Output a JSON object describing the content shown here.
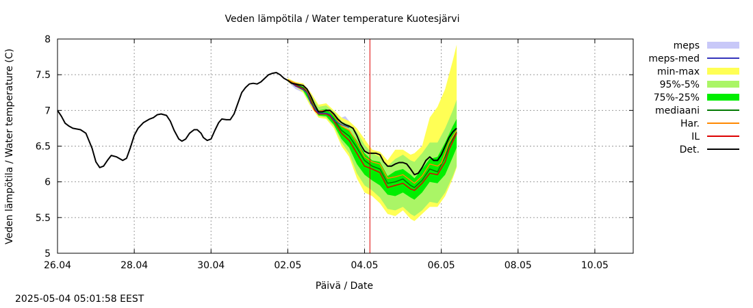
{
  "timestamp": "2025-05-04 05:01:58 EEST",
  "chart_data": {
    "type": "line",
    "title": "Veden lämpötila / Water temperature Kuotesjärvi",
    "xlabel": "Päivä / Date",
    "ylabel": "Veden lämpötila / Water temperature (C)",
    "x_range_days": [
      0,
      7.5
    ],
    "x_ticks": [
      {
        "d": 0,
        "label": "26.04"
      },
      {
        "d": 1,
        "label": "28.04"
      },
      {
        "d": 2,
        "label": "30.04"
      },
      {
        "d": 3,
        "label": "02.05"
      },
      {
        "d": 4,
        "label": "04.05"
      },
      {
        "d": 5,
        "label": "06.05"
      },
      {
        "d": 6,
        "label": "08.05"
      },
      {
        "d": 7,
        "label": "10.05"
      }
    ],
    "ylim": [
      5,
      8
    ],
    "y_ticks": [
      {
        "v": 5,
        "label": "5"
      },
      {
        "v": 5.5,
        "label": "5.5"
      },
      {
        "v": 6,
        "label": "6"
      },
      {
        "v": 6.5,
        "label": "6.5"
      },
      {
        "v": 7,
        "label": "7"
      },
      {
        "v": 7.5,
        "label": "7.5"
      },
      {
        "v": 8,
        "label": "8"
      }
    ],
    "grid": true,
    "legend_position": "right",
    "now_line_day": 4.07,
    "colors": {
      "meps": "#c8c8f8",
      "meps_med": "#3333bb",
      "minmax": "#ffff55",
      "p95_5": "#aaf566",
      "p75_25": "#00ee00",
      "mediaani": "#007700",
      "har": "#ff8800",
      "il": "#dd0000",
      "det": "#000000",
      "now_line": "#dd0000"
    },
    "legend": [
      {
        "key": "meps",
        "label": "meps",
        "style": "box"
      },
      {
        "key": "meps_med",
        "label": "meps-med",
        "style": "line"
      },
      {
        "key": "minmax",
        "label": "min-max",
        "style": "box"
      },
      {
        "key": "p95_5",
        "label": "95%-5%",
        "style": "box"
      },
      {
        "key": "p75_25",
        "label": "75%-25%",
        "style": "box"
      },
      {
        "key": "mediaani",
        "label": "mediaani",
        "style": "line"
      },
      {
        "key": "har",
        "label": "Har.",
        "style": "line"
      },
      {
        "key": "il",
        "label": "IL",
        "style": "line"
      },
      {
        "key": "det",
        "label": "Det.",
        "style": "line"
      }
    ],
    "det_history": [
      [
        0.0,
        7.0
      ],
      [
        0.05,
        6.92
      ],
      [
        0.1,
        6.82
      ],
      [
        0.15,
        6.78
      ],
      [
        0.2,
        6.75
      ],
      [
        0.3,
        6.73
      ],
      [
        0.37,
        6.68
      ],
      [
        0.45,
        6.47
      ],
      [
        0.5,
        6.28
      ],
      [
        0.55,
        6.2
      ],
      [
        0.6,
        6.22
      ],
      [
        0.65,
        6.3
      ],
      [
        0.7,
        6.37
      ],
      [
        0.77,
        6.35
      ],
      [
        0.85,
        6.3
      ],
      [
        0.9,
        6.33
      ],
      [
        0.95,
        6.48
      ],
      [
        1.0,
        6.65
      ],
      [
        1.05,
        6.75
      ],
      [
        1.12,
        6.83
      ],
      [
        1.2,
        6.88
      ],
      [
        1.25,
        6.9
      ],
      [
        1.3,
        6.94
      ],
      [
        1.35,
        6.95
      ],
      [
        1.42,
        6.93
      ],
      [
        1.47,
        6.85
      ],
      [
        1.52,
        6.72
      ],
      [
        1.58,
        6.6
      ],
      [
        1.62,
        6.57
      ],
      [
        1.67,
        6.6
      ],
      [
        1.72,
        6.68
      ],
      [
        1.78,
        6.73
      ],
      [
        1.82,
        6.73
      ],
      [
        1.87,
        6.68
      ],
      [
        1.9,
        6.62
      ],
      [
        1.95,
        6.58
      ],
      [
        2.0,
        6.6
      ],
      [
        2.05,
        6.72
      ],
      [
        2.1,
        6.83
      ],
      [
        2.14,
        6.88
      ],
      [
        2.2,
        6.87
      ],
      [
        2.25,
        6.87
      ],
      [
        2.3,
        6.95
      ],
      [
        2.35,
        7.1
      ],
      [
        2.4,
        7.25
      ],
      [
        2.45,
        7.32
      ],
      [
        2.5,
        7.37
      ],
      [
        2.55,
        7.38
      ],
      [
        2.6,
        7.37
      ],
      [
        2.65,
        7.4
      ],
      [
        2.7,
        7.45
      ],
      [
        2.75,
        7.5
      ],
      [
        2.8,
        7.52
      ],
      [
        2.85,
        7.53
      ],
      [
        2.9,
        7.5
      ],
      [
        2.95,
        7.45
      ],
      [
        3.0,
        7.42
      ]
    ],
    "det_forecast": [
      [
        3.0,
        7.42
      ],
      [
        3.05,
        7.38
      ],
      [
        3.1,
        7.37
      ],
      [
        3.15,
        7.36
      ],
      [
        3.2,
        7.35
      ],
      [
        3.25,
        7.3
      ],
      [
        3.3,
        7.2
      ],
      [
        3.35,
        7.08
      ],
      [
        3.4,
        6.98
      ],
      [
        3.45,
        6.98
      ],
      [
        3.5,
        7.0
      ],
      [
        3.55,
        7.0
      ],
      [
        3.6,
        6.95
      ],
      [
        3.65,
        6.88
      ],
      [
        3.7,
        6.83
      ],
      [
        3.75,
        6.8
      ],
      [
        3.8,
        6.78
      ],
      [
        3.85,
        6.75
      ],
      [
        3.9,
        6.65
      ],
      [
        3.95,
        6.52
      ],
      [
        4.0,
        6.43
      ],
      [
        4.05,
        6.4
      ],
      [
        4.1,
        6.4
      ],
      [
        4.15,
        6.4
      ],
      [
        4.2,
        6.38
      ],
      [
        4.25,
        6.28
      ],
      [
        4.3,
        6.22
      ],
      [
        4.35,
        6.22
      ],
      [
        4.4,
        6.25
      ],
      [
        4.45,
        6.27
      ],
      [
        4.5,
        6.27
      ],
      [
        4.55,
        6.25
      ],
      [
        4.6,
        6.18
      ],
      [
        4.65,
        6.1
      ],
      [
        4.7,
        6.12
      ],
      [
        4.75,
        6.2
      ],
      [
        4.8,
        6.3
      ],
      [
        4.85,
        6.35
      ],
      [
        4.9,
        6.3
      ],
      [
        4.95,
        6.3
      ],
      [
        5.0,
        6.38
      ],
      [
        5.05,
        6.5
      ],
      [
        5.1,
        6.62
      ],
      [
        5.15,
        6.7
      ],
      [
        5.2,
        6.75
      ]
    ],
    "median_offset": -0.12,
    "mediaani": [
      [
        3.0,
        7.42
      ],
      [
        3.1,
        7.36
      ],
      [
        3.2,
        7.32
      ],
      [
        3.25,
        7.26
      ],
      [
        3.3,
        7.15
      ],
      [
        3.35,
        7.03
      ],
      [
        3.4,
        6.96
      ],
      [
        3.5,
        6.96
      ],
      [
        3.55,
        6.94
      ],
      [
        3.6,
        6.88
      ],
      [
        3.7,
        6.72
      ],
      [
        3.8,
        6.64
      ],
      [
        3.9,
        6.48
      ],
      [
        4.0,
        6.3
      ],
      [
        4.1,
        6.22
      ],
      [
        4.2,
        6.18
      ],
      [
        4.3,
        5.98
      ],
      [
        4.4,
        6.0
      ],
      [
        4.5,
        6.04
      ],
      [
        4.6,
        5.95
      ],
      [
        4.65,
        5.92
      ],
      [
        4.75,
        6.02
      ],
      [
        4.85,
        6.18
      ],
      [
        4.95,
        6.14
      ],
      [
        5.05,
        6.35
      ],
      [
        5.1,
        6.5
      ],
      [
        5.2,
        6.7
      ]
    ],
    "il": [
      [
        3.0,
        7.42
      ],
      [
        3.1,
        7.35
      ],
      [
        3.2,
        7.3
      ],
      [
        3.25,
        7.25
      ],
      [
        3.3,
        7.12
      ],
      [
        3.35,
        7.0
      ],
      [
        3.4,
        6.95
      ],
      [
        3.5,
        6.95
      ],
      [
        3.55,
        6.92
      ],
      [
        3.6,
        6.85
      ],
      [
        3.7,
        6.68
      ],
      [
        3.8,
        6.58
      ],
      [
        3.9,
        6.4
      ],
      [
        4.0,
        6.22
      ],
      [
        4.1,
        6.18
      ],
      [
        4.2,
        6.13
      ],
      [
        4.3,
        5.92
      ],
      [
        4.4,
        5.95
      ],
      [
        4.5,
        5.98
      ],
      [
        4.6,
        5.9
      ],
      [
        4.65,
        5.88
      ],
      [
        4.75,
        5.98
      ],
      [
        4.85,
        6.12
      ],
      [
        4.95,
        6.1
      ],
      [
        5.05,
        6.28
      ],
      [
        5.1,
        6.45
      ],
      [
        5.2,
        6.68
      ]
    ],
    "har": [
      [
        3.0,
        7.43
      ],
      [
        3.1,
        7.38
      ],
      [
        3.2,
        7.35
      ],
      [
        3.25,
        7.28
      ],
      [
        3.3,
        7.18
      ],
      [
        3.35,
        7.06
      ],
      [
        3.4,
        6.99
      ],
      [
        3.5,
        7.0
      ],
      [
        3.55,
        6.99
      ],
      [
        3.6,
        6.93
      ],
      [
        3.7,
        6.78
      ],
      [
        3.8,
        6.72
      ],
      [
        3.9,
        6.55
      ],
      [
        4.0,
        6.35
      ],
      [
        4.1,
        6.28
      ],
      [
        4.2,
        6.25
      ],
      [
        4.3,
        6.05
      ],
      [
        4.4,
        6.07
      ],
      [
        4.5,
        6.1
      ],
      [
        4.6,
        6.02
      ],
      [
        4.65,
        5.98
      ],
      [
        4.75,
        6.08
      ],
      [
        4.85,
        6.25
      ],
      [
        4.95,
        6.22
      ],
      [
        5.0,
        6.26
      ],
      [
        5.05,
        6.4
      ],
      [
        5.1,
        6.55
      ],
      [
        5.2,
        6.72
      ]
    ],
    "minmax_band": [
      [
        3.0,
        7.45,
        7.4
      ],
      [
        3.1,
        7.4,
        7.33
      ],
      [
        3.2,
        7.38,
        7.25
      ],
      [
        3.3,
        7.25,
        7.05
      ],
      [
        3.4,
        7.08,
        6.9
      ],
      [
        3.5,
        7.1,
        6.88
      ],
      [
        3.6,
        7.0,
        6.75
      ],
      [
        3.7,
        6.9,
        6.5
      ],
      [
        3.8,
        6.85,
        6.35
      ],
      [
        3.9,
        6.75,
        6.05
      ],
      [
        4.0,
        6.6,
        5.85
      ],
      [
        4.1,
        6.45,
        5.8
      ],
      [
        4.2,
        6.42,
        5.7
      ],
      [
        4.3,
        6.3,
        5.55
      ],
      [
        4.4,
        6.45,
        5.52
      ],
      [
        4.5,
        6.45,
        5.6
      ],
      [
        4.6,
        6.38,
        5.48
      ],
      [
        4.65,
        6.4,
        5.45
      ],
      [
        4.75,
        6.5,
        5.55
      ],
      [
        4.85,
        6.9,
        5.65
      ],
      [
        4.95,
        7.05,
        5.65
      ],
      [
        5.05,
        7.3,
        5.8
      ],
      [
        5.15,
        7.7,
        6.05
      ],
      [
        5.2,
        7.92,
        6.2
      ]
    ],
    "p95_band": [
      [
        3.0,
        7.44,
        7.41
      ],
      [
        3.1,
        7.39,
        7.34
      ],
      [
        3.2,
        7.35,
        7.27
      ],
      [
        3.3,
        7.22,
        7.08
      ],
      [
        3.4,
        7.05,
        6.92
      ],
      [
        3.5,
        7.07,
        6.9
      ],
      [
        3.6,
        6.98,
        6.78
      ],
      [
        3.7,
        6.85,
        6.55
      ],
      [
        3.8,
        6.8,
        6.4
      ],
      [
        3.9,
        6.7,
        6.12
      ],
      [
        4.0,
        6.52,
        5.95
      ],
      [
        4.1,
        6.4,
        5.88
      ],
      [
        4.2,
        6.35,
        5.78
      ],
      [
        4.3,
        6.22,
        5.62
      ],
      [
        4.4,
        6.32,
        5.6
      ],
      [
        4.5,
        6.38,
        5.65
      ],
      [
        4.6,
        6.3,
        5.55
      ],
      [
        4.65,
        6.28,
        5.52
      ],
      [
        4.75,
        6.4,
        5.6
      ],
      [
        4.85,
        6.55,
        5.72
      ],
      [
        4.95,
        6.55,
        5.7
      ],
      [
        5.05,
        6.75,
        5.85
      ],
      [
        5.15,
        7.0,
        6.08
      ],
      [
        5.2,
        7.15,
        6.22
      ]
    ],
    "p75_band": [
      [
        3.0,
        7.43,
        7.41
      ],
      [
        3.1,
        7.37,
        7.34
      ],
      [
        3.2,
        7.33,
        7.28
      ],
      [
        3.3,
        7.18,
        7.1
      ],
      [
        3.4,
        7.0,
        6.93
      ],
      [
        3.5,
        7.02,
        6.92
      ],
      [
        3.6,
        6.93,
        6.8
      ],
      [
        3.7,
        6.78,
        6.6
      ],
      [
        3.8,
        6.72,
        6.48
      ],
      [
        3.9,
        6.58,
        6.25
      ],
      [
        4.0,
        6.4,
        6.1
      ],
      [
        4.1,
        6.3,
        6.02
      ],
      [
        4.2,
        6.28,
        5.95
      ],
      [
        4.3,
        6.08,
        5.82
      ],
      [
        4.4,
        6.15,
        5.8
      ],
      [
        4.5,
        6.18,
        5.85
      ],
      [
        4.6,
        6.1,
        5.78
      ],
      [
        4.65,
        6.05,
        5.75
      ],
      [
        4.75,
        6.18,
        5.85
      ],
      [
        4.85,
        6.32,
        6.0
      ],
      [
        4.95,
        6.35,
        5.98
      ],
      [
        5.05,
        6.55,
        6.1
      ],
      [
        5.15,
        6.78,
        6.35
      ],
      [
        5.2,
        6.88,
        6.48
      ]
    ],
    "meps_band": [
      [
        3.0,
        7.45,
        7.4
      ],
      [
        3.1,
        7.38,
        7.3
      ],
      [
        3.2,
        7.33,
        7.25
      ],
      [
        3.25,
        7.3,
        7.2
      ],
      [
        3.3,
        7.15,
        7.05
      ],
      [
        3.4,
        7.0,
        6.92
      ],
      [
        3.5,
        7.0,
        6.92
      ],
      [
        3.55,
        6.98,
        6.9
      ],
      [
        3.6,
        6.9,
        6.82
      ],
      [
        3.7,
        6.9,
        6.72
      ],
      [
        3.75,
        6.92,
        6.7
      ],
      [
        3.8,
        6.85,
        6.68
      ]
    ],
    "meps_med": [
      [
        3.0,
        7.42
      ],
      [
        3.1,
        7.34
      ],
      [
        3.2,
        7.29
      ],
      [
        3.25,
        7.25
      ],
      [
        3.3,
        7.1
      ],
      [
        3.4,
        6.96
      ],
      [
        3.5,
        6.96
      ],
      [
        3.55,
        6.94
      ],
      [
        3.6,
        6.86
      ],
      [
        3.7,
        6.8
      ],
      [
        3.8,
        6.76
      ]
    ]
  }
}
